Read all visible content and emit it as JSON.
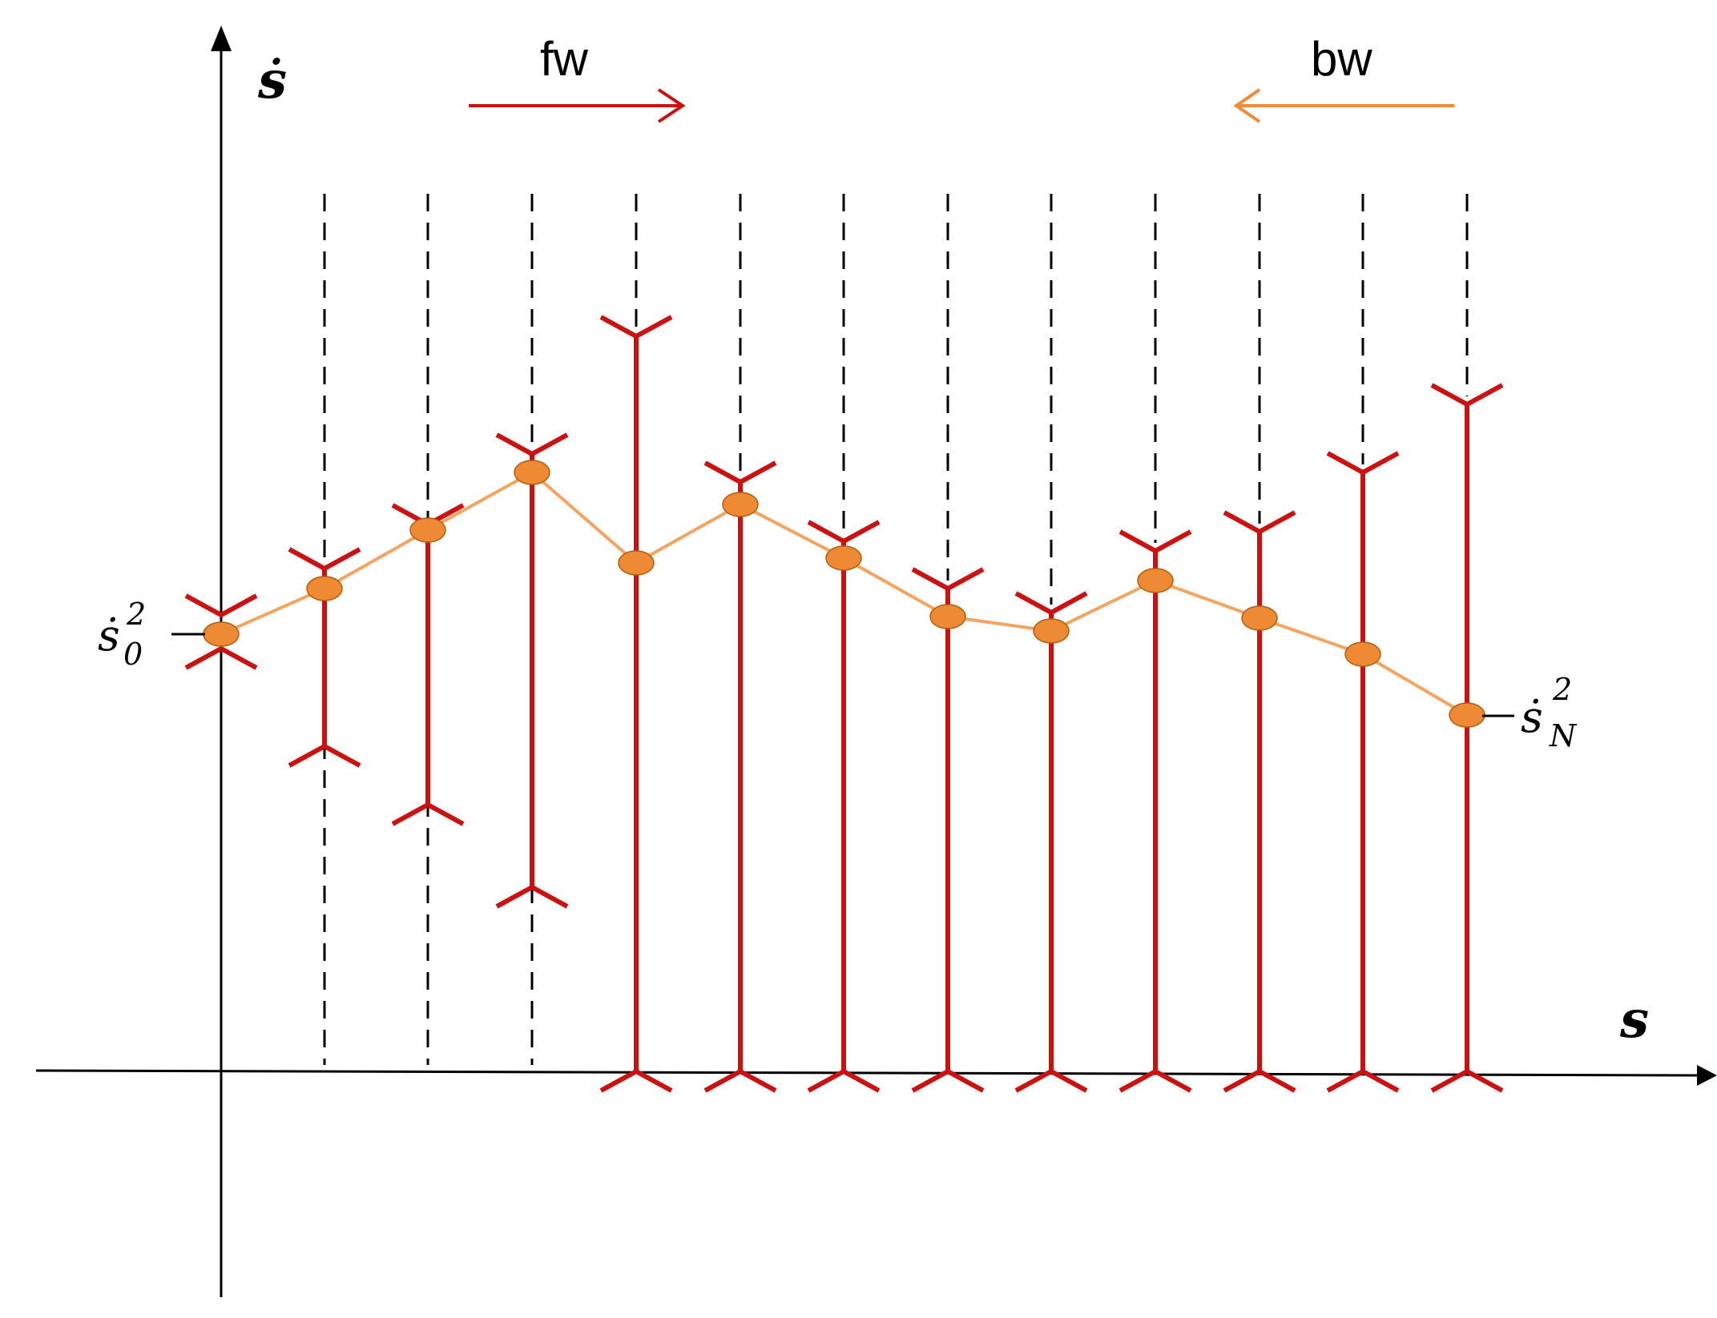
{
  "colors": {
    "axis": "#000000",
    "interval": "#cc1111",
    "profile_line": "#f4a460",
    "profile_point": "#ee8a33",
    "profile_point_stroke": "#b35c10",
    "fw_arrow": "#cc1111",
    "bw_arrow": "#f28a3a",
    "grid": "#000000"
  },
  "axes": {
    "x_label": "s",
    "y_label": "ṡ"
  },
  "directions": {
    "forward_label": "fw",
    "backward_label": "bw"
  },
  "endpoints": {
    "start_label_base": "ṡ",
    "start_sub": "0",
    "start_sup": "2",
    "end_label_base": "ṡ",
    "end_sub": "N",
    "end_sup": "2"
  },
  "stage_count": 13
}
